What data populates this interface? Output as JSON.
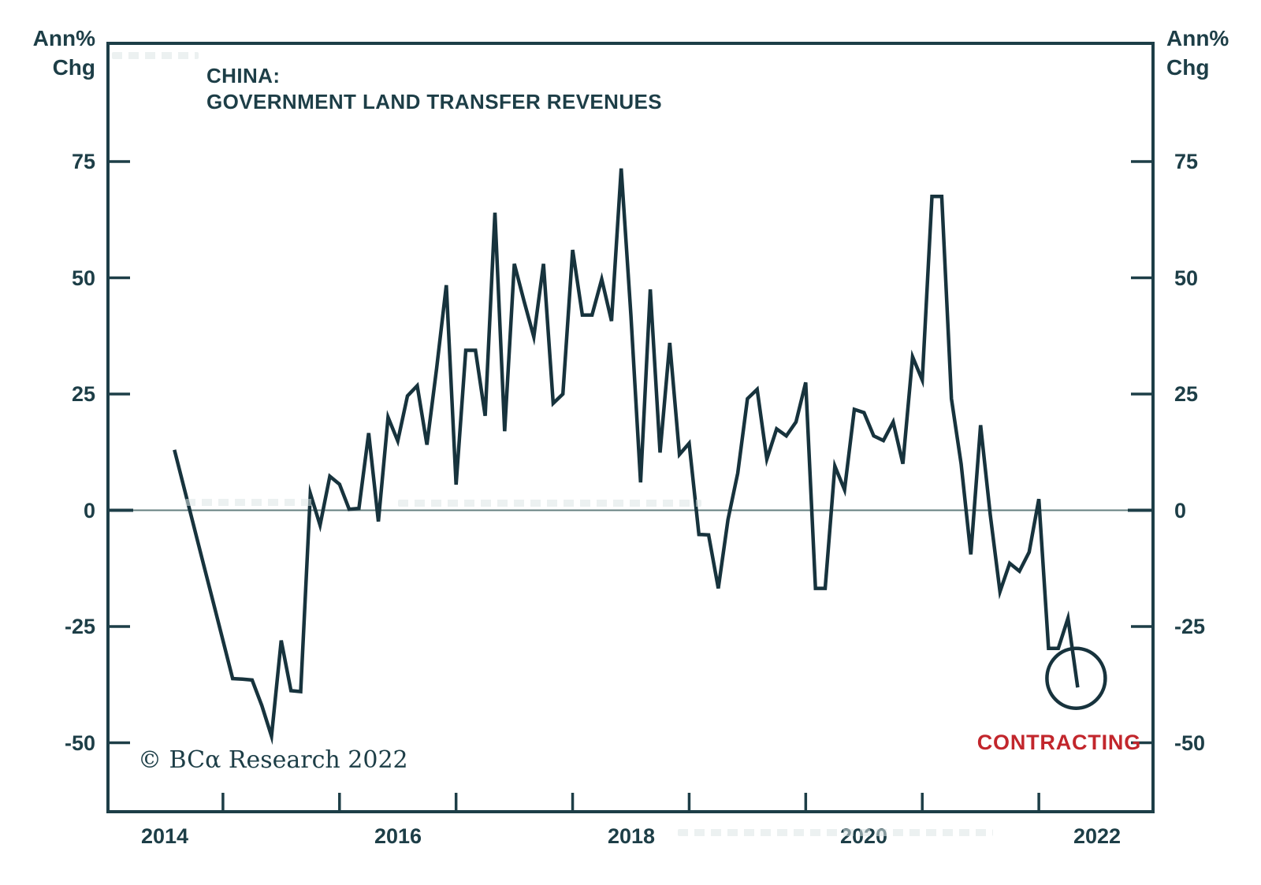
{
  "title": {
    "line1": "CHINA:",
    "line2": "GOVERNMENT LAND TRANSFER REVENUES"
  },
  "y_axis_unit": {
    "line1": "Ann%",
    "line2": "Chg"
  },
  "y_axis": {
    "tick_labels": [
      "75",
      "50",
      "25",
      "0",
      "-25",
      "-50"
    ]
  },
  "x_axis": {
    "year_labels": [
      "2014",
      "2016",
      "2018",
      "2020",
      "2022"
    ],
    "tick_years": [
      2015,
      2016,
      2017,
      2018,
      2019,
      2020,
      2021,
      2022
    ]
  },
  "annotations": {
    "contracting": "CONTRACTING"
  },
  "copyright": "© BCα Research 2022",
  "colors": {
    "ink": "#1d3e47",
    "line": "#17333d",
    "zero_line": "#647f7f",
    "red": "#c2262c",
    "background": "#ffffff"
  },
  "chart_data": {
    "type": "line",
    "title": "CHINA: GOVERNMENT LAND TRANSFER REVENUES",
    "ylabel": "Ann% Chg",
    "frequency": "monthly",
    "x_start": "2014-08",
    "x_end": "2022-05",
    "x_axis_range": [
      "2014-01",
      "2023-01"
    ],
    "ylim": [
      -65,
      101
    ],
    "y_ticks": [
      75,
      50,
      25,
      0,
      -25,
      -50
    ],
    "zero_line": true,
    "gridlines": "zero line only",
    "legend": "none",
    "annotation": {
      "label": "CONTRACTING",
      "circled_point": {
        "date": "2022-05",
        "value": -38
      }
    },
    "values": [
      13,
      4.8,
      -3.4,
      -11.6,
      -19.8,
      -28,
      -36.2,
      -36.3,
      -36.5,
      -42,
      -48.6,
      -28,
      -38.8,
      -39,
      3.6,
      -3.2,
      7.3,
      5.6,
      0.2,
      0.4,
      16.6,
      -2.4,
      20,
      14.9,
      24.6,
      26.8,
      14.1,
      30.5,
      48.4,
      5.5,
      34.4,
      34.4,
      20.3,
      64,
      17,
      53,
      45,
      37.3,
      53,
      23,
      25,
      56,
      42,
      42,
      49.7,
      40.7,
      73.5,
      42,
      6,
      47.5,
      12.4,
      36,
      12,
      14.4,
      -5.2,
      -5.3,
      -16.8,
      -2,
      8,
      24,
      26,
      11,
      17.5,
      16,
      19,
      27.5,
      -16.8,
      -16.8,
      9.5,
      4.4,
      21.7,
      21,
      16,
      15,
      19,
      10,
      33,
      28,
      67.5,
      67.5,
      24,
      10,
      -9.5,
      18.3,
      -1,
      -17.5,
      -11.4,
      -13.1,
      -9,
      2.4,
      -29.7,
      -29.7,
      -23.2,
      -38.1
    ]
  }
}
